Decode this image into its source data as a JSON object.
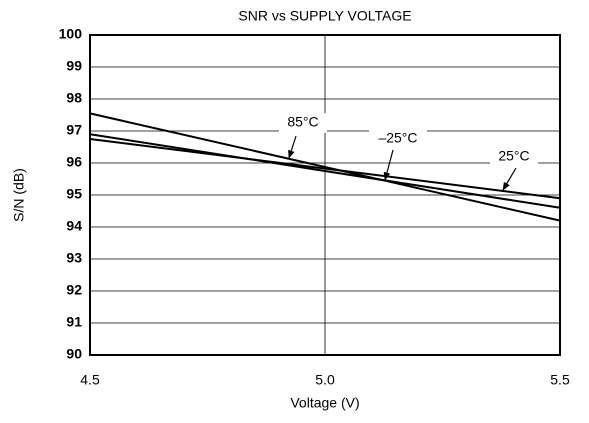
{
  "chart_data": {
    "type": "line",
    "title": "SNR vs SUPPLY VOLTAGE",
    "x_label": "Voltage (V)",
    "y_label": "S/N (dB)",
    "x": [
      4.5,
      5.5
    ],
    "series": [
      {
        "name": "85°C",
        "color": "#000000",
        "values": [
          97.55,
          94.2
        ]
      },
      {
        "name": "–25°C",
        "color": "#000000",
        "values": [
          96.9,
          94.6
        ]
      },
      {
        "name": "25°C",
        "color": "#000000",
        "values": [
          96.75,
          94.9
        ]
      }
    ],
    "xlim": [
      4.5,
      5.5
    ],
    "xticks": [
      4.5,
      {
        "value": 5,
        "label": "5.0"
      },
      5.5
    ],
    "ylim": [
      90,
      100
    ],
    "yticks": [
      90,
      91,
      92,
      93,
      94,
      95,
      96,
      97,
      98,
      99,
      100
    ],
    "grid": true
  }
}
